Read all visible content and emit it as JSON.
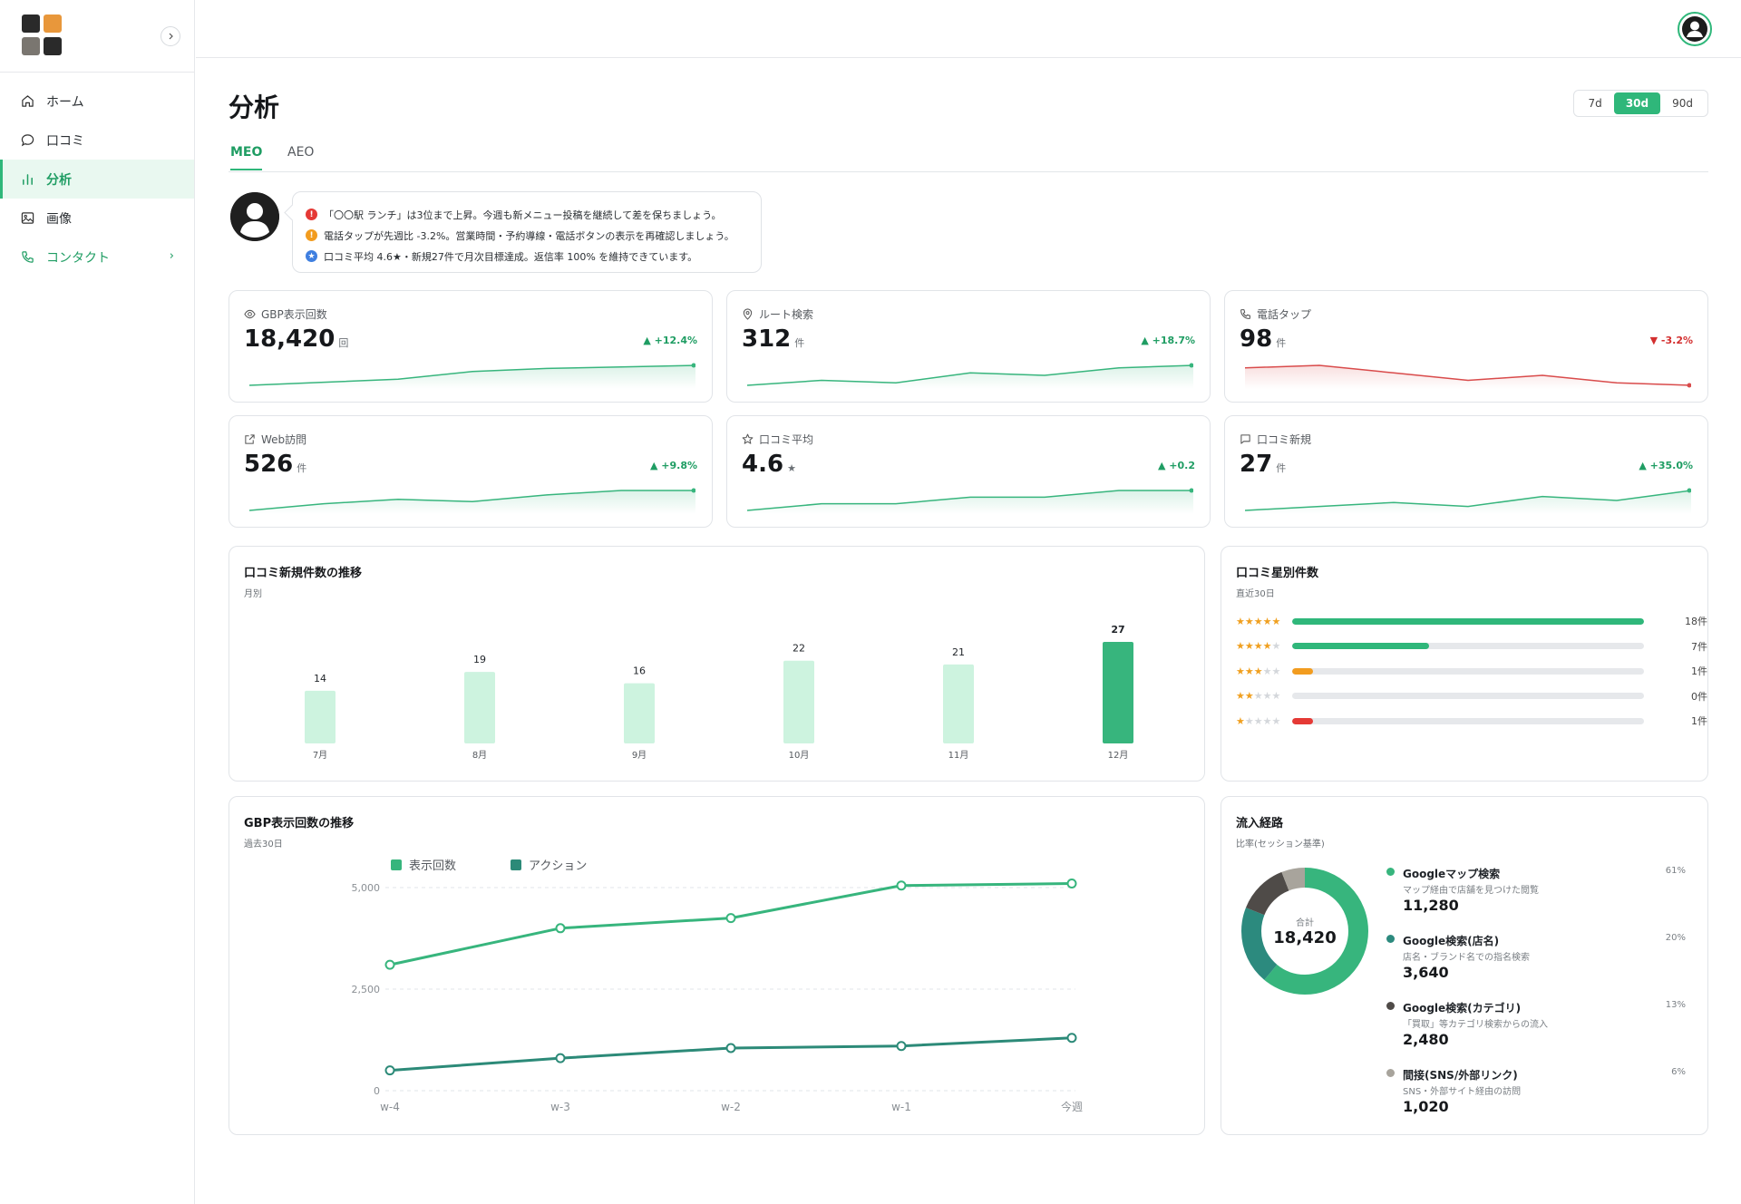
{
  "sidebar": {
    "logo_colors": [
      "#2a2a2a",
      "#e8973b",
      "#7a7670",
      "#2a2a2a"
    ],
    "items": [
      {
        "label": "ホーム",
        "icon": "home-icon"
      },
      {
        "label": "口コミ",
        "icon": "chat-bubble-icon"
      },
      {
        "label": "分析",
        "icon": "bar-chart-icon",
        "active": true
      },
      {
        "label": "画像",
        "icon": "image-icon"
      },
      {
        "label": "コンタクト",
        "icon": "phone-icon"
      }
    ]
  },
  "header": {
    "title": "分析"
  },
  "range": {
    "options": [
      "7d",
      "30d",
      "90d"
    ],
    "selected": "30d"
  },
  "tabs": [
    "MEO",
    "AEO"
  ],
  "active_tab": "MEO",
  "tips": [
    {
      "type": "alert",
      "color": "#e53935",
      "text": "「〇〇駅 ランチ」は3位まで上昇。今週も新メニュー投稿を継続して差を保ちましょう。"
    },
    {
      "type": "warning",
      "color": "#f29c1f",
      "text": "電話タップが先週比 -3.2%。営業時間・予約導線・電話ボタンの表示を再確認しましょう。"
    },
    {
      "type": "star",
      "color": "#3f7fe0",
      "text": "口コミ平均 4.6★・新規27件で月次目標達成。返信率 100% を維持できています。"
    }
  ],
  "kpis": [
    {
      "label": "GBP表示回数",
      "icon": "eye-icon",
      "value": "18,420",
      "unit": "回",
      "delta": "+12.4%",
      "trend": "up",
      "spark": [
        3,
        5,
        7,
        12,
        14,
        15,
        16
      ]
    },
    {
      "label": "ルート検索",
      "icon": "map-pin-icon",
      "value": "312",
      "unit": "件",
      "delta": "+18.7%",
      "trend": "up",
      "spark": [
        4,
        6,
        5,
        9,
        8,
        11,
        12
      ]
    },
    {
      "label": "電話タップ",
      "icon": "phone-icon",
      "value": "98",
      "unit": "件",
      "delta": "-3.2%",
      "trend": "down",
      "spark": [
        14,
        15,
        12,
        9,
        11,
        8,
        7
      ]
    },
    {
      "label": "Web訪問",
      "icon": "external-link-icon",
      "value": "526",
      "unit": "件",
      "delta": "+9.8%",
      "trend": "up",
      "spark": [
        3,
        6,
        8,
        7,
        10,
        12,
        12
      ]
    },
    {
      "label": "口コミ平均",
      "icon": "star-icon",
      "value": "4.6",
      "unit": "★",
      "delta": "+0.2",
      "trend": "up",
      "spark": [
        3,
        6,
        6,
        9,
        9,
        12,
        12
      ]
    },
    {
      "label": "口コミ新規",
      "icon": "message-icon",
      "value": "27",
      "unit": "件",
      "delta": "+35.0%",
      "trend": "up",
      "spark": [
        3,
        5,
        7,
        5,
        10,
        8,
        13
      ]
    }
  ],
  "review_trend": {
    "title": "口コミ新規件数の推移",
    "subtitle": "月別",
    "chart_data": {
      "type": "bar",
      "categories": [
        "7月",
        "8月",
        "9月",
        "10月",
        "11月",
        "12月"
      ],
      "values": [
        14,
        19,
        16,
        22,
        21,
        27
      ],
      "highlight_index": 5,
      "ylim": [
        0,
        27
      ]
    }
  },
  "star_dist": {
    "title": "口コミ星別件数",
    "subtitle": "直近30日",
    "rows": [
      {
        "stars": 5,
        "count": 18,
        "label": "18件",
        "color": "#2fb77a"
      },
      {
        "stars": 4,
        "count": 7,
        "label": "7件",
        "color": "#2fb77a"
      },
      {
        "stars": 3,
        "count": 1,
        "label": "1件",
        "color": "#f29c1f"
      },
      {
        "stars": 2,
        "count": 0,
        "label": "0件",
        "color": "#cccccc"
      },
      {
        "stars": 1,
        "count": 1,
        "label": "1件",
        "color": "#e53935"
      }
    ],
    "max": 18
  },
  "gbp_trend": {
    "title": "GBP表示回数の推移",
    "subtitle": "過去30日",
    "chart_data": {
      "type": "line",
      "x": [
        "w-4",
        "w-3",
        "w-2",
        "w-1",
        "今週"
      ],
      "series": [
        {
          "name": "表示回数",
          "color": "#37b57d",
          "values": [
            3100,
            4000,
            4250,
            5050,
            5100
          ]
        },
        {
          "name": "アクション",
          "color": "#2c8a78",
          "values": [
            500,
            800,
            1050,
            1100,
            1300
          ]
        }
      ],
      "ylim": [
        0,
        5000
      ],
      "yticks": [
        0,
        2500,
        5000
      ],
      "ytick_labels": [
        "0",
        "2,500",
        "5,000"
      ],
      "grid": true,
      "legend": "top-left"
    }
  },
  "traffic": {
    "title": "流入経路",
    "subtitle": "比率(セッション基準)",
    "total_label": "合計",
    "total": "18,420",
    "chart_data": {
      "type": "pie",
      "categories": [
        "Googleマップ検索",
        "Google検索(店名)",
        "Google検索(カテゴリ)",
        "間接(SNS/外部リンク)"
      ],
      "values": [
        61,
        20,
        13,
        6
      ]
    },
    "items": [
      {
        "name": "Googleマップ検索",
        "desc": "マップ経由で店舗を見つけた閲覧",
        "value": "11,280",
        "pct": "61%",
        "color": "#37b57d"
      },
      {
        "name": "Google検索(店名)",
        "desc": "店名・ブランド名での指名検索",
        "value": "3,640",
        "pct": "20%",
        "color": "#2c8a7e"
      },
      {
        "name": "Google検索(カテゴリ)",
        "desc": "「買取」等カテゴリ検索からの流入",
        "value": "2,480",
        "pct": "13%",
        "color": "#4f4b48"
      },
      {
        "name": "間接(SNS/外部リンク)",
        "desc": "SNS・外部サイト経由の訪問",
        "value": "1,020",
        "pct": "6%",
        "color": "#a8a49c"
      }
    ]
  }
}
